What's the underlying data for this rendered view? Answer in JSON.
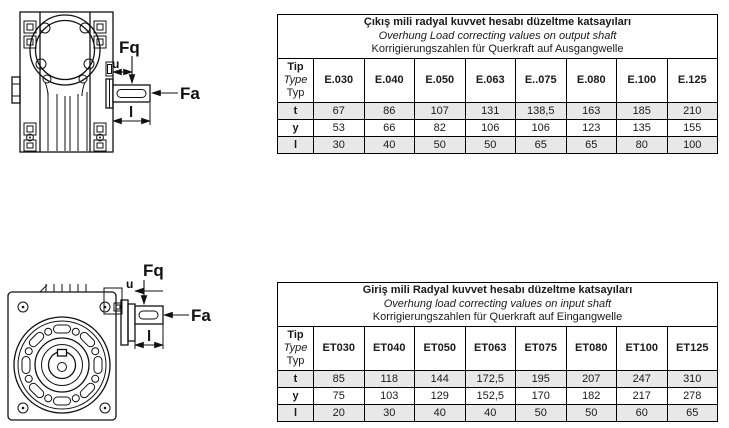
{
  "diagrams": {
    "output": {
      "labels": {
        "fq": "Fq",
        "u": "u",
        "fa": "Fa",
        "l": "l"
      }
    },
    "input": {
      "labels": {
        "fq": "Fq",
        "u": "u",
        "fa": "Fa",
        "l": "l"
      }
    }
  },
  "tables": [
    {
      "title_tr": "Çıkış mili radyal kuvvet hesabı düzeltme katsayıları",
      "title_en": "Overhung Load correcting values on output shaft",
      "title_de": "Korrigierungszahlen für Querkraft auf Ausgangwelle",
      "corner": {
        "l1": "Tip",
        "l2": "Type",
        "l3": "Typ"
      },
      "columns": [
        "E.030",
        "E.040",
        "E.050",
        "E.063",
        "E..075",
        "E.080",
        "E.100",
        "E.125"
      ],
      "rows": [
        {
          "label": "t",
          "values": [
            "67",
            "86",
            "107",
            "131",
            "138,5",
            "163",
            "185",
            "210"
          ]
        },
        {
          "label": "y",
          "values": [
            "53",
            "66",
            "82",
            "106",
            "106",
            "123",
            "135",
            "155"
          ]
        },
        {
          "label": "l",
          "values": [
            "30",
            "40",
            "50",
            "50",
            "65",
            "65",
            "80",
            "100"
          ]
        }
      ]
    },
    {
      "title_tr": "Giriş mili Radyal kuvvet hesabı düzeltme katsayıları",
      "title_en": "Overhung load correcting values on input shaft",
      "title_de": "Korrigierungszahlen für Querkraft auf Eingangwelle",
      "corner": {
        "l1": "Tip",
        "l2": "Type",
        "l3": "Typ"
      },
      "columns": [
        "ET030",
        "ET040",
        "ET050",
        "ET063",
        "ET075",
        "ET080",
        "ET100",
        "ET125"
      ],
      "rows": [
        {
          "label": "t",
          "values": [
            "85",
            "118",
            "144",
            "172,5",
            "195",
            "207",
            "247",
            "310"
          ]
        },
        {
          "label": "y",
          "values": [
            "75",
            "103",
            "129",
            "152,5",
            "170",
            "182",
            "217",
            "278"
          ]
        },
        {
          "label": "l",
          "values": [
            "20",
            "30",
            "40",
            "40",
            "50",
            "50",
            "60",
            "65"
          ]
        }
      ]
    }
  ],
  "colors": {
    "shaded_row": "#e8e8e8",
    "line": "#000000",
    "background": "#ffffff"
  }
}
